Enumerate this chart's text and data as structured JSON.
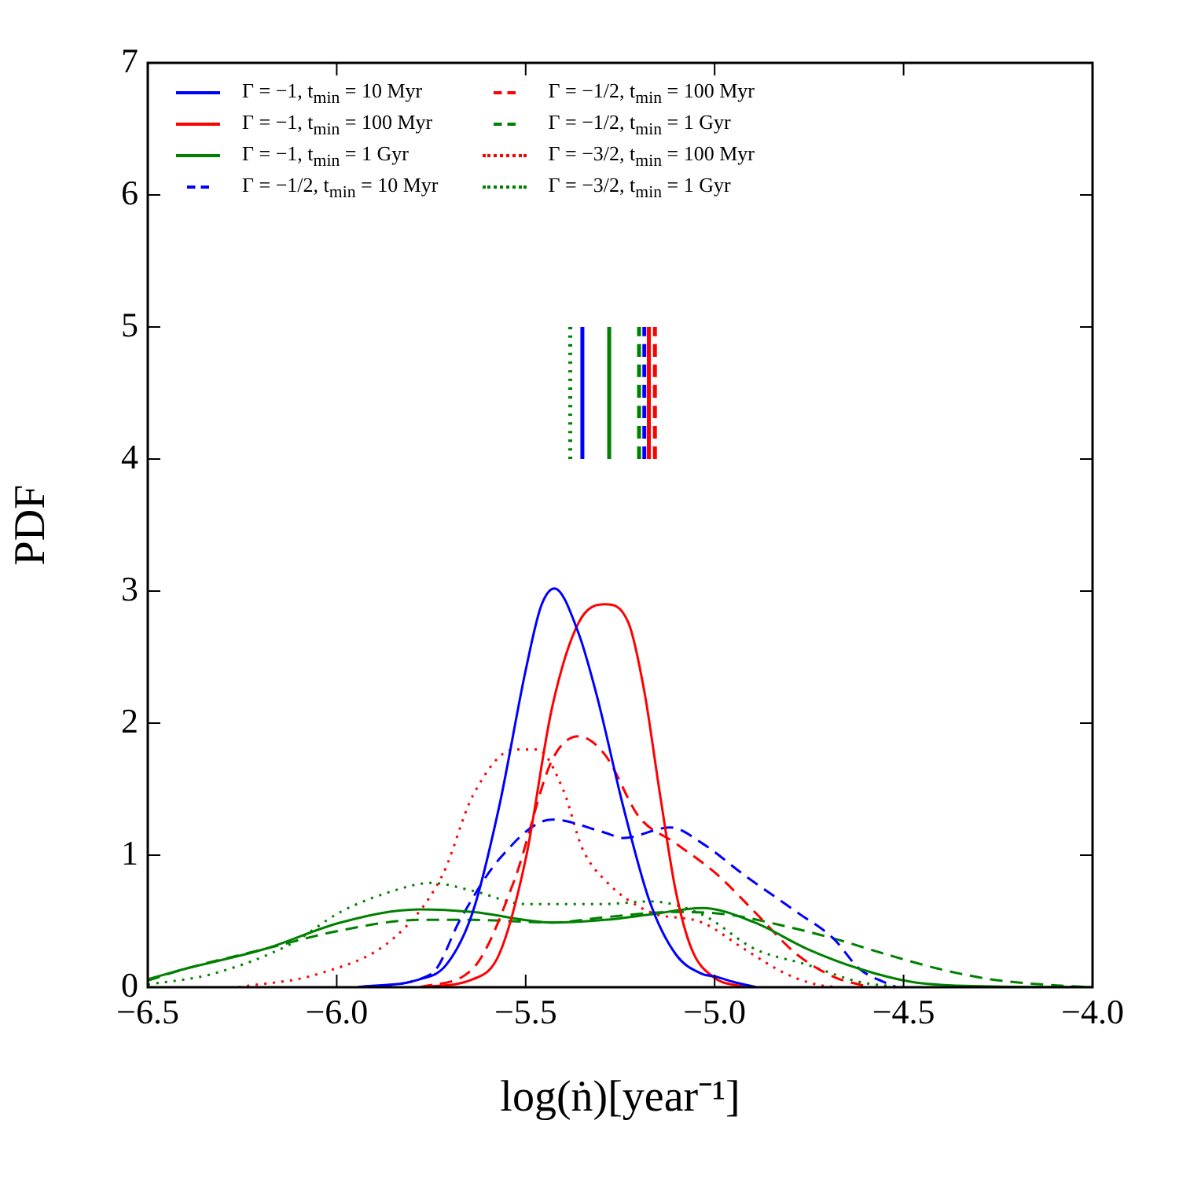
{
  "chart_data": {
    "type": "line",
    "xlabel": "log(ṅ)[year⁻¹]",
    "ylabel": "PDF",
    "xlim": [
      -6.5,
      -4.0
    ],
    "ylim": [
      0,
      7
    ],
    "xticks": [
      {
        "value": -6.5,
        "label": "−6.5"
      },
      {
        "value": -6.0,
        "label": "−6.0"
      },
      {
        "value": -5.5,
        "label": "−5.5"
      },
      {
        "value": -5.0,
        "label": "−5.0"
      },
      {
        "value": -4.5,
        "label": "−4.5"
      },
      {
        "value": -4.0,
        "label": "−4.0"
      }
    ],
    "yticks": [
      0,
      1,
      2,
      3,
      4,
      5,
      6,
      7
    ],
    "grid": false,
    "legend": "top left",
    "marker": "none",
    "series": [
      {
        "name": "Γ = −1, t$_{min}$ = 10 Myr",
        "color": "#0000ff",
        "line_style": "solid",
        "x": [
          -5.944,
          -5.78,
          -5.71,
          -5.64,
          -5.57,
          -5.5,
          -5.46,
          -5.424,
          -5.36,
          -5.311,
          -5.242,
          -5.172,
          -5.103,
          -5.033,
          -4.998,
          -4.95,
          -4.89
        ],
        "values": [
          0,
          0.06,
          0.17,
          0.57,
          1.37,
          2.4,
          2.88,
          3.02,
          2.68,
          2.2,
          1.37,
          0.65,
          0.25,
          0.1,
          0.08,
          0.04,
          0
        ]
      },
      {
        "name": "Γ = −1, t$_{min}$ = 100 Myr",
        "color": "#ff0000",
        "line_style": "solid",
        "x": [
          -5.78,
          -5.64,
          -5.57,
          -5.5,
          -5.43,
          -5.36,
          -5.29,
          -5.228,
          -5.186,
          -5.144,
          -5.103,
          -5.061,
          -5.005,
          -4.92
        ],
        "values": [
          0,
          0.06,
          0.25,
          0.97,
          2.12,
          2.76,
          2.9,
          2.76,
          2.24,
          1.45,
          0.73,
          0.29,
          0.08,
          0
        ]
      },
      {
        "name": "Γ = −1, t$_{min}$ = 1 Gyr",
        "color": "#008000",
        "line_style": "solid",
        "x": [
          -6.5,
          -6.4,
          -6.19,
          -5.99,
          -5.78,
          -5.64,
          -5.43,
          -5.29,
          -5.172,
          -5.033,
          -4.894,
          -4.755,
          -4.617,
          -4.478,
          -4.34,
          -4.0
        ],
        "values": [
          0.06,
          0.14,
          0.29,
          0.49,
          0.59,
          0.57,
          0.49,
          0.51,
          0.55,
          0.6,
          0.49,
          0.29,
          0.14,
          0.04,
          0.01,
          0
        ]
      },
      {
        "name": "Γ = −1/2, t$_{min}$ = 10 Myr",
        "color": "#0000ff",
        "line_style": "dashed",
        "x": [
          -5.94,
          -5.75,
          -5.67,
          -5.57,
          -5.43,
          -5.29,
          -5.242,
          -5.117,
          -5.033,
          -4.922,
          -4.783,
          -4.686,
          -4.617,
          -4.52
        ],
        "values": [
          0,
          0.1,
          0.53,
          0.97,
          1.27,
          1.17,
          1.13,
          1.21,
          1.09,
          0.85,
          0.57,
          0.37,
          0.14,
          0
        ]
      },
      {
        "name": "Γ = −1/2, t$_{min}$ = 100 Myr",
        "color": "#ff0000",
        "line_style": "dashed",
        "x": [
          -5.78,
          -5.64,
          -5.53,
          -5.43,
          -5.36,
          -5.29,
          -5.2,
          -5.103,
          -4.992,
          -4.894,
          -4.783,
          -4.686,
          -4.59
        ],
        "values": [
          0,
          0.14,
          0.81,
          1.72,
          1.9,
          1.76,
          1.29,
          1.09,
          0.85,
          0.57,
          0.25,
          0.08,
          0
        ]
      },
      {
        "name": "Γ = −1/2, t$_{min}$ = 1 Gyr",
        "color": "#008000",
        "line_style": "dashed",
        "x": [
          -6.5,
          -6.4,
          -6.19,
          -5.99,
          -5.78,
          -5.64,
          -5.43,
          -5.29,
          -5.103,
          -4.964,
          -4.825,
          -4.686,
          -4.547,
          -4.408,
          -4.27,
          -4.13,
          -4.0
        ],
        "values": [
          0.05,
          0.14,
          0.29,
          0.43,
          0.51,
          0.51,
          0.49,
          0.53,
          0.57,
          0.55,
          0.47,
          0.37,
          0.25,
          0.14,
          0.06,
          0.02,
          0
        ]
      },
      {
        "name": "Γ = −3/2, t$_{min}$ = 100 Myr",
        "color": "#ff0000",
        "line_style": "dotted",
        "x": [
          -6.26,
          -6.05,
          -5.85,
          -5.72,
          -5.64,
          -5.53,
          -5.47,
          -5.4,
          -5.35,
          -5.29,
          -5.172,
          -5.033,
          -4.922,
          -4.81,
          -4.73,
          -4.67
        ],
        "values": [
          0,
          0.1,
          0.37,
          0.85,
          1.45,
          1.8,
          1.8,
          1.49,
          1.05,
          0.81,
          0.57,
          0.49,
          0.29,
          0.1,
          0.02,
          0
        ]
      },
      {
        "name": "Γ = −3/2, t$_{min}$ = 1 Gyr",
        "color": "#008000",
        "line_style": "dotted",
        "x": [
          -6.5,
          -6.33,
          -6.12,
          -5.99,
          -5.85,
          -5.75,
          -5.64,
          -5.5,
          -5.29,
          -5.172,
          -5.033,
          -4.894,
          -4.755,
          -4.617,
          -4.5
        ],
        "values": [
          0.02,
          0.1,
          0.33,
          0.57,
          0.73,
          0.79,
          0.73,
          0.63,
          0.63,
          0.65,
          0.55,
          0.29,
          0.17,
          0.04,
          0
        ]
      },
      {
        "color": "#008000",
        "line_style": "dotted",
        "x": [
          -5.382,
          -5.382
        ],
        "values": [
          4,
          5
        ]
      },
      {
        "color": "#0000ff",
        "line_style": "solid",
        "x": [
          -5.35,
          -5.35
        ],
        "values": [
          4,
          5
        ]
      },
      {
        "color": "#008000",
        "line_style": "solid",
        "x": [
          -5.279,
          -5.279
        ],
        "values": [
          4,
          5
        ]
      },
      {
        "color": "#008000",
        "line_style": "dashed",
        "x": [
          -5.2,
          -5.2
        ],
        "values": [
          4,
          5
        ]
      },
      {
        "color": "#0000ff",
        "line_style": "dashed",
        "x": [
          -5.186,
          -5.186
        ],
        "values": [
          4,
          5
        ]
      },
      {
        "color": "#ff0000",
        "line_style": "solid",
        "x": [
          -5.174,
          -5.174
        ],
        "values": [
          4,
          5
        ]
      },
      {
        "color": "#ff0000",
        "line_style": "dashed",
        "x": [
          -5.158,
          -5.158
        ],
        "values": [
          4,
          5
        ]
      }
    ]
  }
}
